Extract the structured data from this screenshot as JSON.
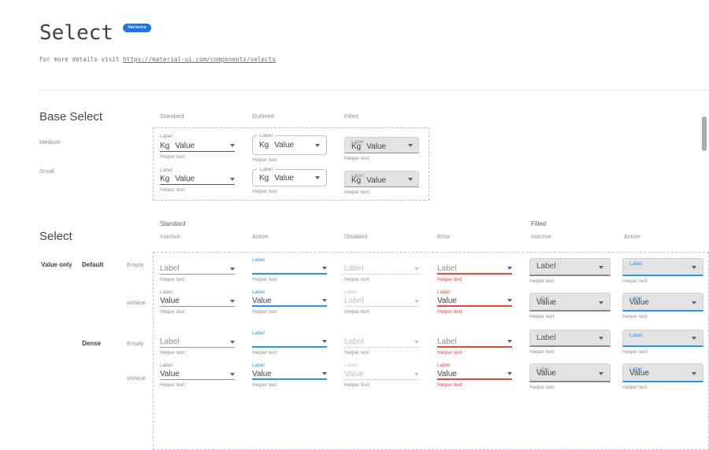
{
  "page": {
    "title": "Select",
    "badge": "Variants",
    "subtitle_prefix": "For more details visit ",
    "subtitle_link": "https://material-ui.com/components/selects"
  },
  "colors": {
    "accent_blue": "#2196F3",
    "badge_blue": "#1A73E8",
    "error_red": "#F44336",
    "dashed_border": "#B9BCF2",
    "filled_bg": "#E3E3E3"
  },
  "base_select": {
    "heading": "Base Select",
    "column_headers": [
      "Standard",
      "Outlined",
      "Filled"
    ],
    "row_headers": [
      "Medium",
      "Small"
    ],
    "rows": [
      {
        "size": "Medium",
        "cells": [
          {
            "variant": "standard",
            "label": "Label",
            "adornment": "Kg",
            "value": "Value",
            "helper": "Helper text"
          },
          {
            "variant": "outlined",
            "label": "Label",
            "adornment": "Kg",
            "value": "Value",
            "helper": "Helper text"
          },
          {
            "variant": "filled",
            "label": "Label",
            "adornment": "Kg",
            "value": "Value",
            "helper": "Helper text"
          }
        ]
      },
      {
        "size": "Small",
        "cells": [
          {
            "variant": "standard",
            "label": "Label",
            "adornment": "Kg",
            "value": "Value",
            "helper": "Helper text"
          },
          {
            "variant": "outlined",
            "label": "Label",
            "adornment": "Kg",
            "value": "Value",
            "helper": "Helper text"
          },
          {
            "variant": "filled",
            "label": "Label",
            "adornment": "Kg",
            "value": "Value",
            "helper": "Helper text"
          }
        ]
      }
    ]
  },
  "select_grid": {
    "heading": "Select",
    "group_headers": [
      "Standard",
      "Filled"
    ],
    "column_headers": [
      "Inactive",
      "Active",
      "Disabled",
      "Error",
      "Inactive",
      "Active"
    ],
    "side_labels": {
      "group": "Value only",
      "type_default": "Default",
      "type_dense": "Dense",
      "empty": "Empty",
      "wvalue": "wValue"
    },
    "rows": [
      {
        "name": "default-empty",
        "dense": false,
        "cells": [
          {
            "variant": "standard",
            "state": "inactive",
            "floating_label": "",
            "value": "Label",
            "value_style": "placeholder",
            "helper": "Helper text"
          },
          {
            "variant": "standard",
            "state": "active",
            "floating_label": "Label",
            "value": "",
            "value_style": "normal",
            "helper": "Helper text"
          },
          {
            "variant": "standard",
            "state": "disabled",
            "floating_label": "",
            "value": "Label",
            "value_style": "disabled",
            "helper": "Helper text"
          },
          {
            "variant": "standard",
            "state": "error",
            "floating_label": "",
            "value": "Label",
            "value_style": "placeholder",
            "helper": "Helper text"
          },
          {
            "variant": "filled",
            "state": "inactive",
            "floating_label": "",
            "value": "Label",
            "value_style": "filled-plain",
            "helper": "Helper text"
          },
          {
            "variant": "filled",
            "state": "active",
            "floating_label": "Label",
            "value": "",
            "value_style": "normal",
            "helper": "Helper text"
          }
        ]
      },
      {
        "name": "default-wvalue",
        "dense": false,
        "cells": [
          {
            "variant": "standard",
            "state": "inactive",
            "floating_label": "Label",
            "value": "Value",
            "value_style": "normal",
            "helper": "Helper text"
          },
          {
            "variant": "standard",
            "state": "active",
            "floating_label": "Label",
            "value": "Value",
            "value_style": "normal",
            "helper": "Helper text"
          },
          {
            "variant": "standard",
            "state": "disabled",
            "floating_label": "Label",
            "value": "Label",
            "value_style": "disabled",
            "helper": "Helper text"
          },
          {
            "variant": "standard",
            "state": "error",
            "floating_label": "Label",
            "value": "Value",
            "value_style": "normal",
            "helper": "Helper text"
          },
          {
            "variant": "filled",
            "state": "inactive",
            "floating_label": "Label",
            "value": "Value",
            "value_style": "normal",
            "helper": "Helper text"
          },
          {
            "variant": "filled",
            "state": "active",
            "floating_label": "Label",
            "value": "Value",
            "value_style": "normal",
            "helper": "Helper text"
          }
        ]
      },
      {
        "name": "dense-empty",
        "dense": true,
        "cells": [
          {
            "variant": "standard",
            "state": "inactive",
            "floating_label": "",
            "value": "Label",
            "value_style": "placeholder",
            "helper": "Helper text"
          },
          {
            "variant": "standard",
            "state": "active",
            "floating_label": "Label",
            "value": "",
            "value_style": "normal",
            "helper": "Helper text"
          },
          {
            "variant": "standard",
            "state": "disabled",
            "floating_label": "",
            "value": "Label",
            "value_style": "disabled",
            "helper": "Helper text"
          },
          {
            "variant": "standard",
            "state": "error",
            "floating_label": "",
            "value": "Label",
            "value_style": "placeholder",
            "helper": "Helper text"
          },
          {
            "variant": "filled",
            "state": "inactive",
            "floating_label": "",
            "value": "Label",
            "value_style": "filled-plain",
            "helper": "Helper text"
          },
          {
            "variant": "filled",
            "state": "active",
            "floating_label": "Label",
            "value": "",
            "value_style": "normal",
            "helper": "Helper text"
          }
        ]
      },
      {
        "name": "dense-wvalue",
        "dense": true,
        "cells": [
          {
            "variant": "standard",
            "state": "inactive",
            "floating_label": "Label",
            "value": "Value",
            "value_style": "normal",
            "helper": "Helper text"
          },
          {
            "variant": "standard",
            "state": "active",
            "floating_label": "Label",
            "value": "Value",
            "value_style": "normal",
            "helper": "Helper text"
          },
          {
            "variant": "standard",
            "state": "disabled",
            "floating_label": "Label",
            "value": "Value",
            "value_style": "disabled",
            "helper": "Helper text"
          },
          {
            "variant": "standard",
            "state": "error",
            "floating_label": "Label",
            "value": "Value",
            "value_style": "normal",
            "helper": "Helper text"
          },
          {
            "variant": "filled",
            "state": "inactive",
            "floating_label": "Label",
            "value": "Value",
            "value_style": "normal",
            "helper": "Helper text"
          },
          {
            "variant": "filled",
            "state": "active",
            "floating_label": "Label",
            "value": "Value",
            "value_style": "normal",
            "helper": "Helper text"
          }
        ]
      }
    ]
  }
}
